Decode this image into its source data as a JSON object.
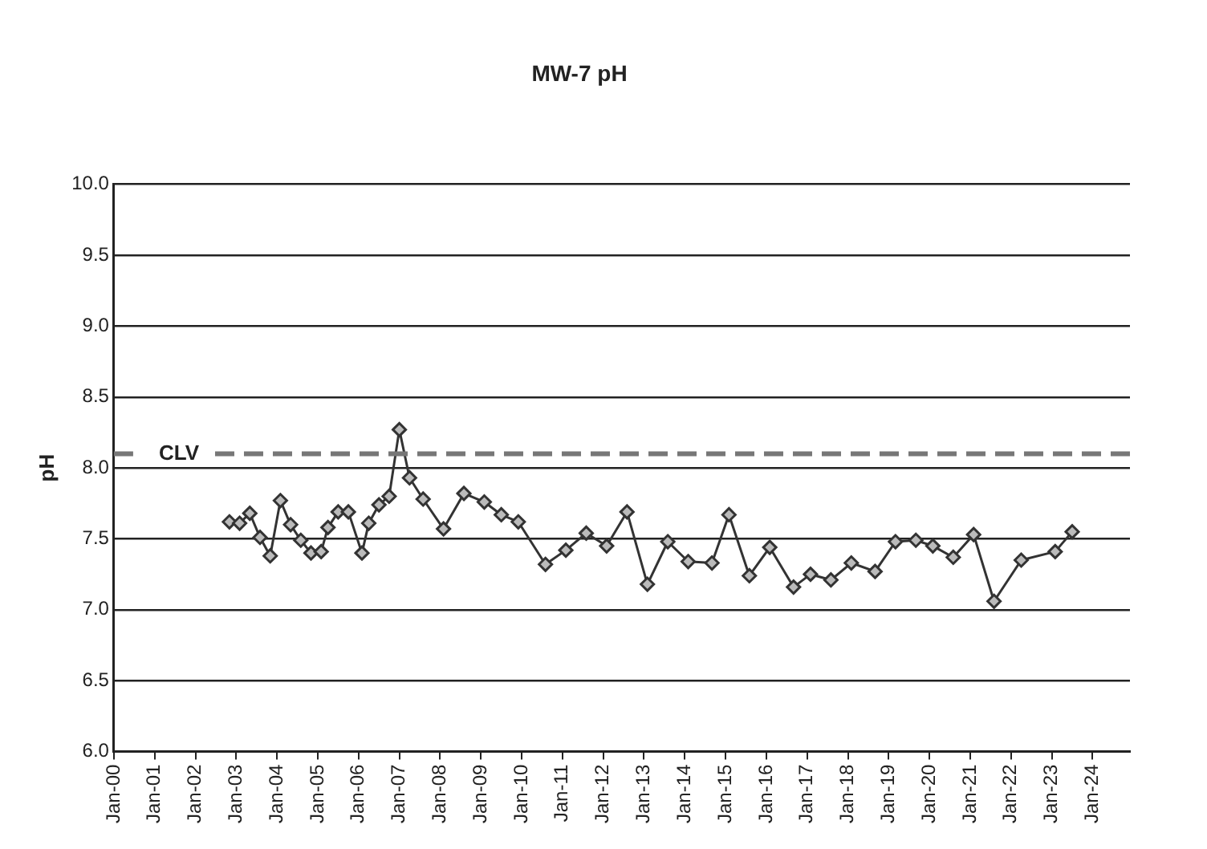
{
  "chart_data": {
    "type": "line",
    "title": "MW-7 pH",
    "ylabel": "pH",
    "series": [
      {
        "color": "#333333",
        "x": [
          "2002-11",
          "2003-02",
          "2003-05",
          "2003-08",
          "2003-11",
          "2004-02",
          "2004-05",
          "2004-08",
          "2004-11",
          "2005-02",
          "2005-04",
          "2005-07",
          "2005-10",
          "2006-02",
          "2006-04",
          "2006-07",
          "2006-10",
          "2007-01",
          "2007-04",
          "2007-08",
          "2008-02",
          "2008-08",
          "2009-02",
          "2009-07",
          "2009-12",
          "2010-08",
          "2011-02",
          "2011-08",
          "2012-02",
          "2012-08",
          "2013-02",
          "2013-08",
          "2014-02",
          "2014-09",
          "2015-02",
          "2015-08",
          "2016-02",
          "2016-09",
          "2017-02",
          "2017-08",
          "2018-02",
          "2018-09",
          "2019-03",
          "2019-09",
          "2020-02",
          "2020-08",
          "2021-02",
          "2021-08",
          "2022-04",
          "2023-02",
          "2023-07"
        ],
        "values": [
          7.62,
          7.61,
          7.68,
          7.51,
          7.38,
          7.77,
          7.6,
          7.49,
          7.4,
          7.41,
          7.58,
          7.69,
          7.69,
          7.4,
          7.61,
          7.74,
          7.8,
          8.27,
          7.93,
          7.78,
          7.57,
          7.82,
          7.76,
          7.67,
          7.62,
          7.32,
          7.42,
          7.54,
          7.45,
          7.69,
          7.18,
          7.48,
          7.34,
          7.33,
          7.67,
          7.24,
          7.44,
          7.16,
          7.25,
          7.21,
          7.33,
          7.27,
          7.48,
          7.49,
          7.45,
          7.37,
          7.53,
          7.06,
          7.35,
          7.41,
          7.55
        ]
      }
    ],
    "xlim": [
      "2000-01",
      "2024-12"
    ],
    "xticks": [
      {
        "value": "2000-01",
        "label": "Jan-00"
      },
      {
        "value": "2001-01",
        "label": "Jan-01"
      },
      {
        "value": "2002-01",
        "label": "Jan-02"
      },
      {
        "value": "2003-01",
        "label": "Jan-03"
      },
      {
        "value": "2004-01",
        "label": "Jan-04"
      },
      {
        "value": "2005-01",
        "label": "Jan-05"
      },
      {
        "value": "2006-01",
        "label": "Jan-06"
      },
      {
        "value": "2007-01",
        "label": "Jan-07"
      },
      {
        "value": "2008-01",
        "label": "Jan-08"
      },
      {
        "value": "2009-01",
        "label": "Jan-09"
      },
      {
        "value": "2010-01",
        "label": "Jan-10"
      },
      {
        "value": "2011-01",
        "label": "Jan-11"
      },
      {
        "value": "2012-01",
        "label": "Jan-12"
      },
      {
        "value": "2013-01",
        "label": "Jan-13"
      },
      {
        "value": "2014-01",
        "label": "Jan-14"
      },
      {
        "value": "2015-01",
        "label": "Jan-15"
      },
      {
        "value": "2016-01",
        "label": "Jan-16"
      },
      {
        "value": "2017-01",
        "label": "Jan-17"
      },
      {
        "value": "2018-01",
        "label": "Jan-18"
      },
      {
        "value": "2019-01",
        "label": "Jan-19"
      },
      {
        "value": "2020-01",
        "label": "Jan-20"
      },
      {
        "value": "2021-01",
        "label": "Jan-21"
      },
      {
        "value": "2022-01",
        "label": "Jan-22"
      },
      {
        "value": "2023-01",
        "label": "Jan-23"
      },
      {
        "value": "2024-01",
        "label": "Jan-24"
      }
    ],
    "ylim": [
      6,
      10
    ],
    "yticks": [
      {
        "value": 6,
        "label": "6.0"
      },
      {
        "value": 6.5,
        "label": "6.5"
      },
      {
        "value": 7,
        "label": "7.0"
      },
      {
        "value": 7.5,
        "label": "7.5"
      },
      {
        "value": 8,
        "label": "8.0"
      },
      {
        "value": 8.5,
        "label": "8.5"
      },
      {
        "value": 9,
        "label": "9.0"
      },
      {
        "value": 9.5,
        "label": "9.5"
      },
      {
        "value": 10,
        "label": "10.0"
      }
    ],
    "grid": "y",
    "legend": false,
    "marker": "diamond",
    "line_style": "solid",
    "ref_lines": [
      {
        "axis": "y",
        "value": 8.1,
        "label": "CLV",
        "color": "#777777",
        "line_style": "dashed"
      }
    ]
  }
}
